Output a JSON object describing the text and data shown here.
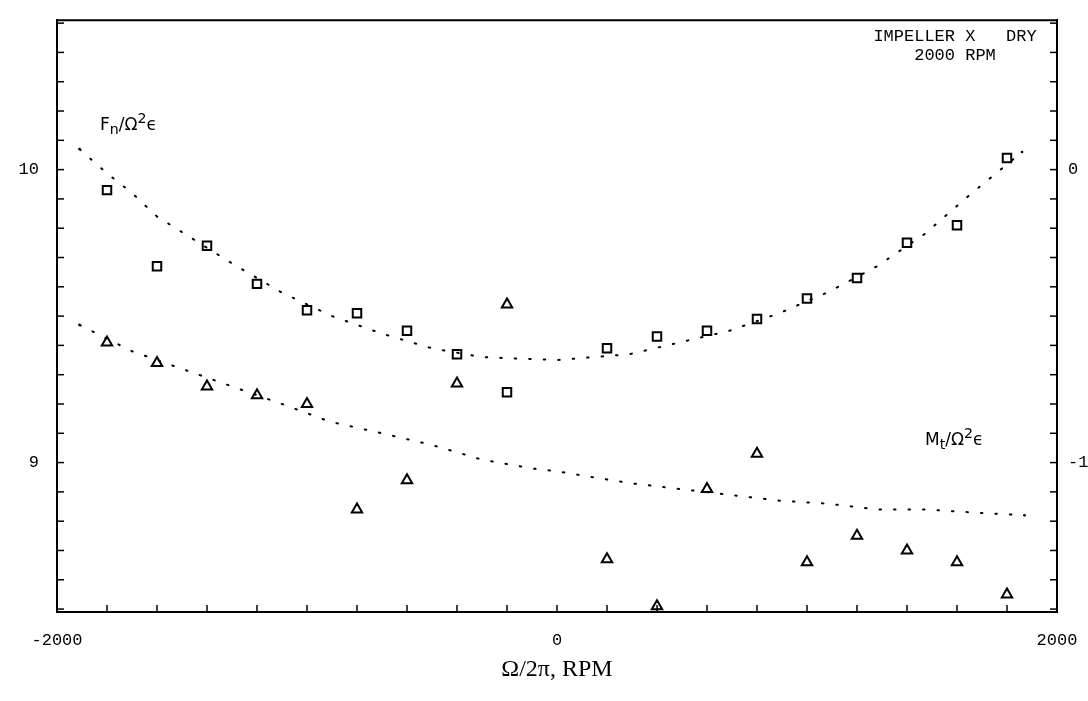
{
  "chart_data": {
    "type": "scatter",
    "xlabel": "Ω/2π, RPM",
    "ylabel": "F$_{n}$/Ω$^{2}$ϵ",
    "y2label": "M$_{t}$/Ω$^{2}$ϵ",
    "annotations": [
      "IMPELLER X   DRY",
      "2000 RPM"
    ],
    "xlim": [
      -2000,
      2000
    ],
    "xticks": [
      -2000,
      {
        "value": -1800,
        "label": null
      },
      {
        "value": -1600,
        "label": null
      },
      {
        "value": -1400,
        "label": null
      },
      {
        "value": -1200,
        "label": null
      },
      {
        "value": -1000,
        "label": null
      },
      {
        "value": -800,
        "label": null
      },
      {
        "value": -600,
        "label": null
      },
      {
        "value": -400,
        "label": null
      },
      {
        "value": -200,
        "label": null
      },
      0,
      {
        "value": 200,
        "label": null
      },
      {
        "value": 400,
        "label": null
      },
      {
        "value": 600,
        "label": null
      },
      {
        "value": 800,
        "label": null
      },
      {
        "value": 1000,
        "label": null
      },
      {
        "value": 1200,
        "label": null
      },
      {
        "value": 1400,
        "label": null
      },
      {
        "value": 1600,
        "label": null
      },
      {
        "value": 1800,
        "label": null
      },
      2000
    ],
    "ylim": [
      8.49,
      10.51
    ],
    "yticks": [
      {
        "value": 8.5,
        "label": null
      },
      {
        "value": 8.6,
        "label": null
      },
      {
        "value": 8.7,
        "label": null
      },
      {
        "value": 8.8,
        "label": null
      },
      {
        "value": 8.9,
        "label": null
      },
      9,
      {
        "value": 9.1,
        "label": null
      },
      {
        "value": 9.2,
        "label": null
      },
      {
        "value": 9.3,
        "label": null
      },
      {
        "value": 9.4,
        "label": null
      },
      {
        "value": 9.5,
        "label": null
      },
      {
        "value": 9.6,
        "label": null
      },
      {
        "value": 9.7,
        "label": null
      },
      {
        "value": 9.8,
        "label": null
      },
      {
        "value": 9.9,
        "label": null
      },
      10,
      {
        "value": 10.1,
        "label": null
      },
      {
        "value": 10.2,
        "label": null
      },
      {
        "value": 10.3,
        "label": null
      },
      {
        "value": 10.4,
        "label": null
      },
      {
        "value": 10.5,
        "label": null
      }
    ],
    "y2lim": [
      -1.51,
      0.51
    ],
    "y2ticks": [
      {
        "value": -1.5,
        "label": null
      },
      {
        "value": -1.4,
        "label": null
      },
      {
        "value": -1.3,
        "label": null
      },
      {
        "value": -1.2,
        "label": null
      },
      {
        "value": -1.1,
        "label": null
      },
      -1,
      {
        "value": -0.9,
        "label": null
      },
      {
        "value": -0.8,
        "label": null
      },
      {
        "value": -0.7,
        "label": null
      },
      {
        "value": -0.6,
        "label": null
      },
      {
        "value": -0.5,
        "label": null
      },
      {
        "value": -0.4,
        "label": null
      },
      {
        "value": -0.3,
        "label": null
      },
      {
        "value": -0.2,
        "label": null
      },
      {
        "value": -0.1,
        "label": null
      },
      0,
      {
        "value": 0.1,
        "label": null
      },
      {
        "value": 0.2,
        "label": null
      },
      {
        "value": 0.3,
        "label": null
      },
      {
        "value": 0.4,
        "label": null
      },
      {
        "value": 0.5,
        "label": null
      }
    ],
    "series": [
      {
        "type": "scatter",
        "marker": "square",
        "color": "#000000",
        "x": [
          -1800,
          -1600,
          -1400,
          -1200,
          -1000,
          -800,
          -600,
          -400,
          -200,
          200,
          400,
          600,
          800,
          1000,
          1200,
          1400,
          1600,
          1800
        ],
        "values": [
          9.93,
          9.67,
          9.74,
          9.61,
          9.52,
          9.51,
          9.45,
          9.37,
          9.24,
          9.39,
          9.43,
          9.45,
          9.49,
          9.56,
          9.63,
          9.75,
          9.81,
          10.04
        ]
      },
      {
        "type": "scatter",
        "marker": "triangle",
        "axis": "y2",
        "color": "#000000",
        "x": [
          -1800,
          -1600,
          -1400,
          -1200,
          -1000,
          -800,
          -600,
          -400,
          -200,
          200,
          400,
          600,
          800,
          1000,
          1200,
          1400,
          1600,
          1800
        ],
        "values": [
          -0.59,
          -0.66,
          -0.74,
          -0.77,
          -0.8,
          -1.16,
          -1.06,
          -0.73,
          -0.46,
          -1.33,
          -1.49,
          -1.09,
          -0.97,
          -1.34,
          -1.25,
          -1.3,
          -1.34,
          -1.45
        ]
      },
      {
        "type": "line",
        "marker": "none",
        "line_style": "dotted",
        "color": "#000000",
        "x": [
          -1910,
          -1804,
          -1700,
          -1600,
          -1300,
          -1100,
          -900,
          -700,
          -500,
          -300,
          0,
          290,
          490,
          690,
          890,
          1080,
          1280,
          1470,
          1660,
          1860
        ],
        "values": [
          10.07,
          9.99,
          9.92,
          9.84,
          9.68,
          9.58,
          9.5,
          9.44,
          9.39,
          9.36,
          9.35,
          9.37,
          9.41,
          9.45,
          9.51,
          9.58,
          9.67,
          9.78,
          9.92,
          10.06
        ]
      },
      {
        "type": "line",
        "marker": "none",
        "line_style": "dotted",
        "axis": "y2",
        "color": "#000000",
        "x": [
          -1910,
          -1700,
          -1500,
          -1300,
          -1100,
          -910,
          -700,
          -500,
          -300,
          -100,
          0,
          290,
          490,
          690,
          890,
          1080,
          1280,
          1470,
          1660,
          1870
        ],
        "values": [
          -0.53,
          -0.62,
          -0.68,
          -0.74,
          -0.8,
          -0.86,
          -0.9,
          -0.94,
          -0.99,
          -1.02,
          -1.03,
          -1.07,
          -1.09,
          -1.11,
          -1.13,
          -1.14,
          -1.16,
          -1.16,
          -1.17,
          -1.18
        ]
      }
    ]
  }
}
